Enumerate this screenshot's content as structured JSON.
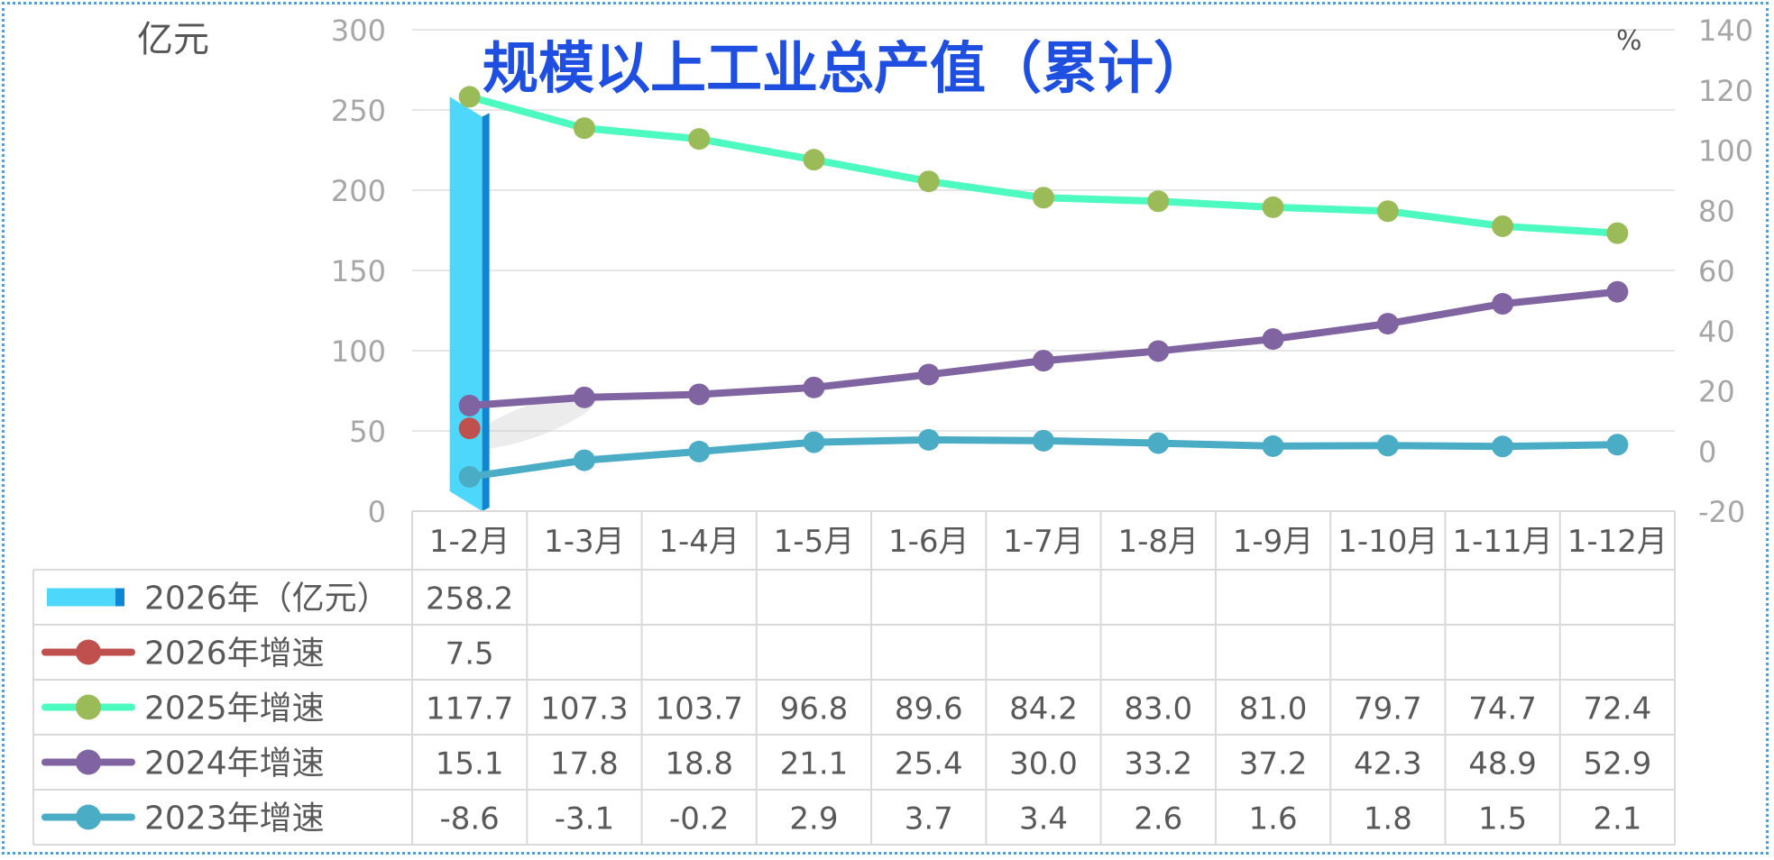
{
  "chart_data": {
    "type": "bar+line",
    "title": "规模以上工业总产值（累计）",
    "left_axis_unit": "亿元",
    "right_axis_unit": "%",
    "left_axis": {
      "min": 0,
      "max": 300,
      "ticks": [
        "0",
        "50",
        "100",
        "150",
        "200",
        "250",
        "300"
      ]
    },
    "right_axis": {
      "min": -20,
      "max": 140,
      "ticks": [
        "-20",
        "0",
        "20",
        "40",
        "60",
        "80",
        "100",
        "120",
        "140"
      ]
    },
    "categories": [
      "1-2月",
      "1-3月",
      "1-4月",
      "1-5月",
      "1-6月",
      "1-7月",
      "1-8月",
      "1-9月",
      "1-10月",
      "1-11月",
      "1-12月"
    ],
    "series": [
      {
        "name": "2026年（亿元）",
        "type": "bar",
        "axis": "left",
        "color": "#4dd7fa",
        "values": [
          258.2,
          null,
          null,
          null,
          null,
          null,
          null,
          null,
          null,
          null,
          null
        ],
        "labels": [
          "258.2",
          "",
          "",
          "",
          "",
          "",
          "",
          "",
          "",
          "",
          ""
        ]
      },
      {
        "name": "2026年增速",
        "type": "line",
        "axis": "right",
        "color": "#c0504d",
        "values": [
          7.5,
          null,
          null,
          null,
          null,
          null,
          null,
          null,
          null,
          null,
          null
        ],
        "labels": [
          "7.5",
          "",
          "",
          "",
          "",
          "",
          "",
          "",
          "",
          "",
          ""
        ]
      },
      {
        "name": "2025年增速",
        "type": "line",
        "axis": "right",
        "color": "#4dfac0",
        "marker": "#9bbb59",
        "values": [
          117.7,
          107.3,
          103.7,
          96.8,
          89.6,
          84.2,
          83.0,
          81.0,
          79.7,
          74.7,
          72.4
        ],
        "labels": [
          "117.7",
          "107.3",
          "103.7",
          "96.8",
          "89.6",
          "84.2",
          "83.0",
          "81.0",
          "79.7",
          "74.7",
          "72.4"
        ]
      },
      {
        "name": "2024年增速",
        "type": "line",
        "axis": "right",
        "color": "#8064a2",
        "values": [
          15.1,
          17.8,
          18.8,
          21.1,
          25.4,
          30.0,
          33.2,
          37.2,
          42.3,
          48.9,
          52.9
        ],
        "labels": [
          "15.1",
          "17.8",
          "18.8",
          "21.1",
          "25.4",
          "30.0",
          "33.2",
          "37.2",
          "42.3",
          "48.9",
          "52.9"
        ]
      },
      {
        "name": "2023年增速",
        "type": "line",
        "axis": "right",
        "color": "#4bacc6",
        "values": [
          -8.6,
          -3.1,
          -0.2,
          2.9,
          3.7,
          3.4,
          2.6,
          1.6,
          1.8,
          1.5,
          2.1
        ],
        "labels": [
          "-8.6",
          "-3.1",
          "-0.2",
          "2.9",
          "3.7",
          "3.4",
          "2.6",
          "1.6",
          "1.8",
          "1.5",
          "2.1"
        ]
      }
    ],
    "grid": true,
    "legend": "data-table"
  }
}
